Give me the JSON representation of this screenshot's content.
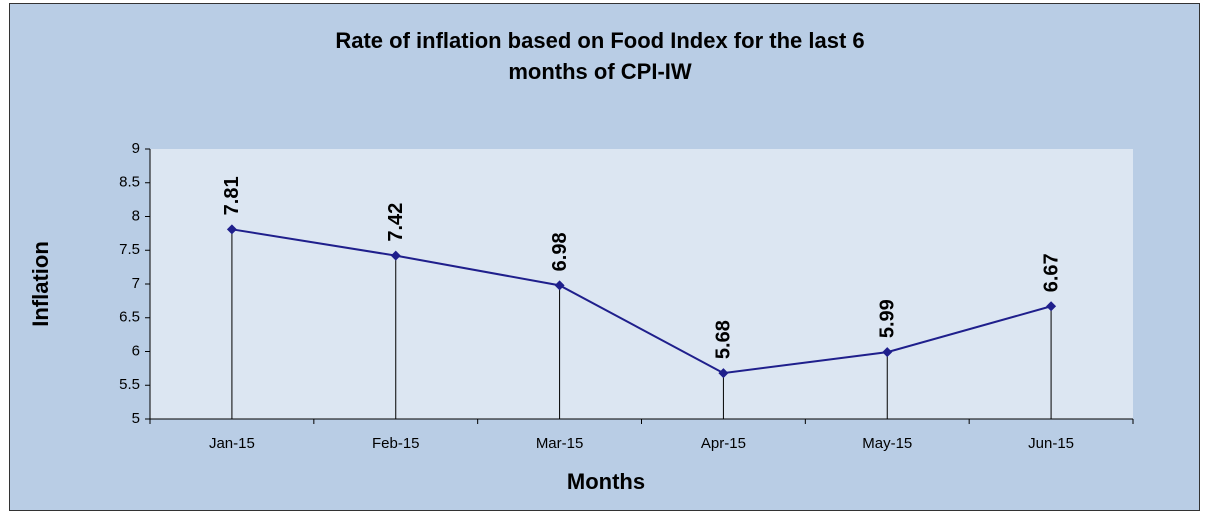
{
  "chart_data": {
    "type": "line",
    "title": [
      "Rate of  inflation based on Food Index for the last 6",
      "months of CPI-IW"
    ],
    "x_label": "Months",
    "y_label": "Inflation",
    "categories": [
      "Jan-15",
      "Feb-15",
      "Mar-15",
      "Apr-15",
      "May-15",
      "Jun-15"
    ],
    "series": [
      {
        "name": "Inflation",
        "color": "#1f1f8c",
        "values": [
          7.81,
          7.42,
          6.98,
          5.68,
          5.99,
          6.67
        ]
      }
    ],
    "ylim": [
      5,
      9
    ],
    "yticks": [
      5,
      5.5,
      6,
      6.5,
      7,
      7.5,
      8,
      8.5,
      9
    ],
    "grid": false,
    "drop_lines": true,
    "data_labels": true
  }
}
